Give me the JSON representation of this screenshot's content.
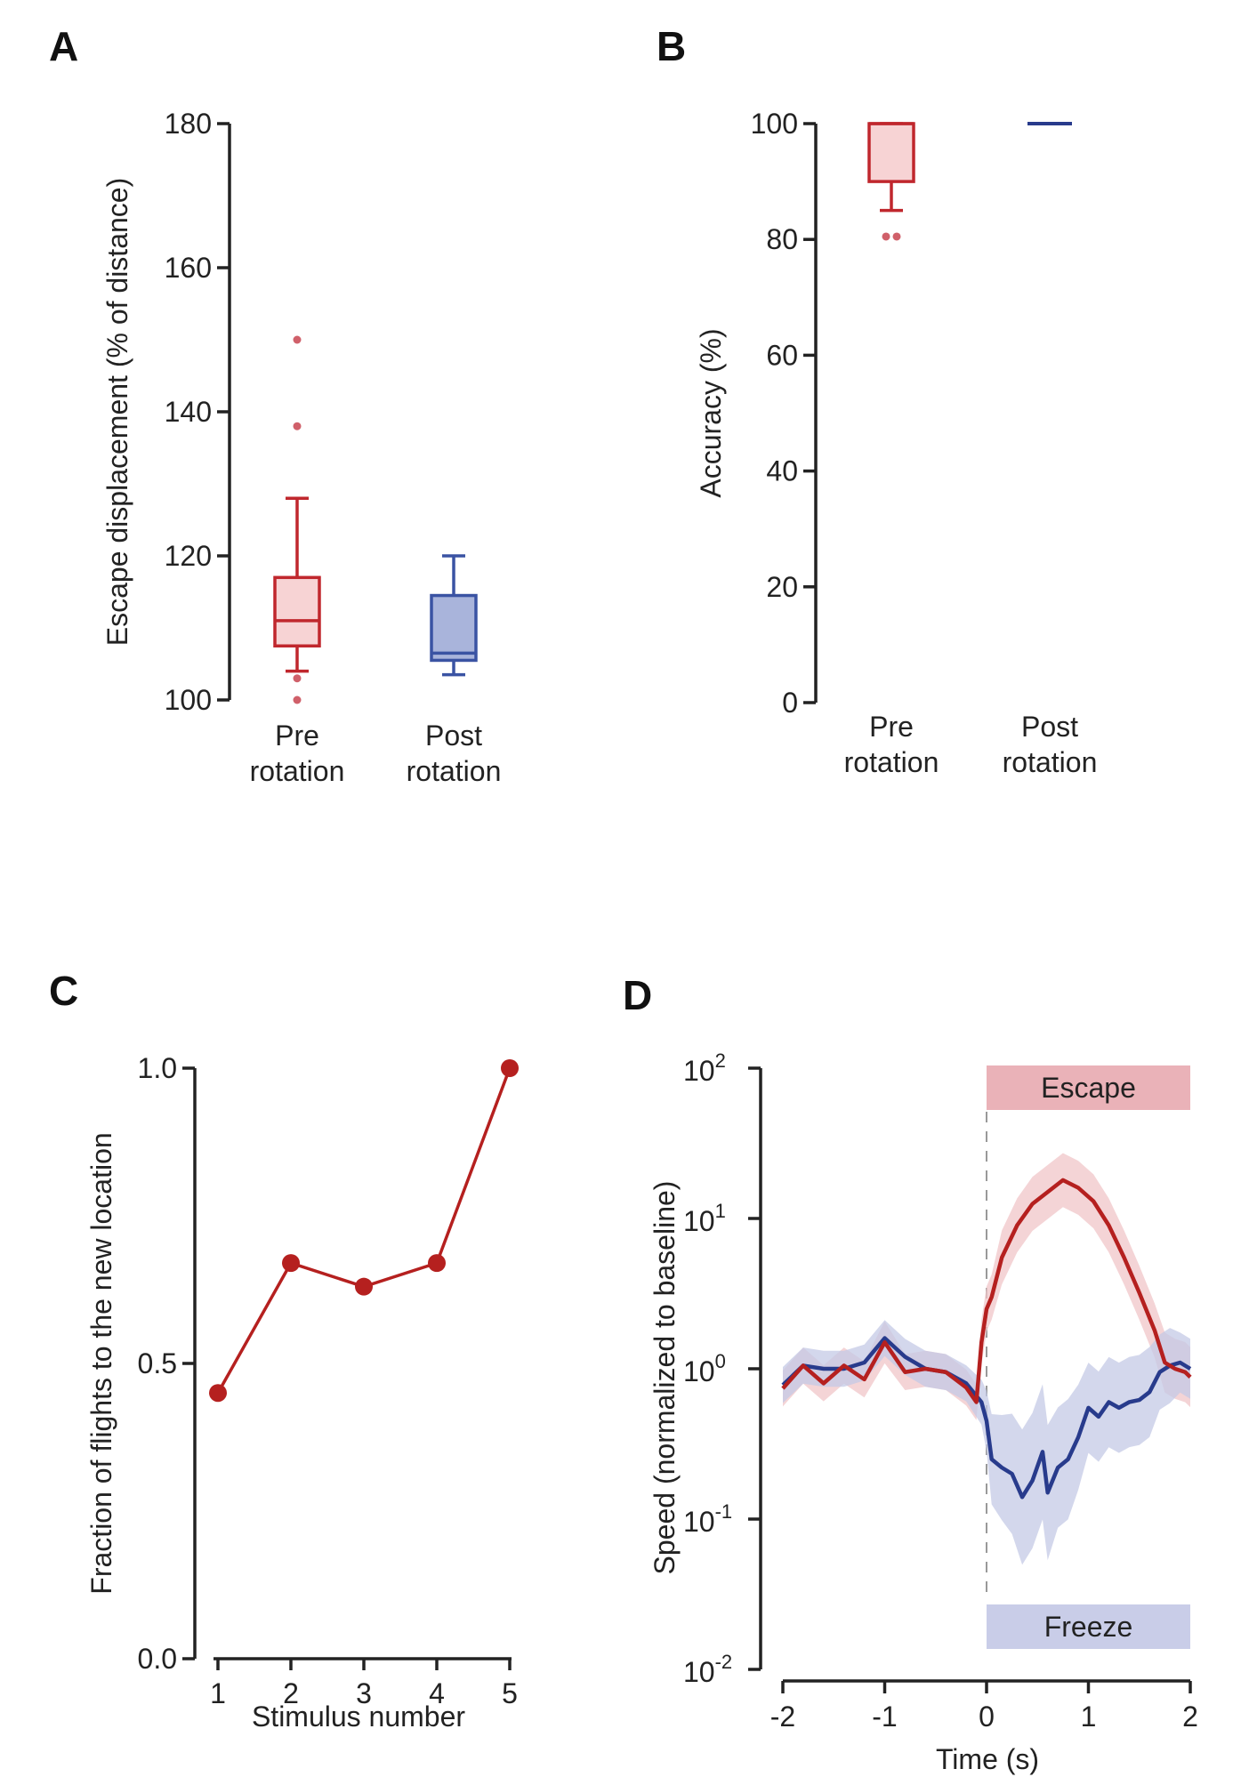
{
  "chart_data": [
    {
      "panel": "A",
      "type": "box",
      "ylabel": "Escape displacement (% of distance)",
      "ylim": [
        100,
        180
      ],
      "yticks": [
        "100",
        "120",
        "140",
        "160",
        "180"
      ],
      "categories": [
        {
          "line1": "Pre",
          "line2": "rotation",
          "color": "#c0272d",
          "fill": "#f7d3d4",
          "whisker_low": 104,
          "q1": 107.5,
          "median": 111,
          "q3": 117,
          "whisker_high": 128,
          "outliers": [
            150,
            138,
            103,
            100
          ]
        },
        {
          "line1": "Post",
          "line2": "rotation",
          "color": "#3a53a3",
          "fill": "#a9b4db",
          "whisker_low": 103.5,
          "q1": 105.5,
          "median": 106.5,
          "q3": 114.5,
          "whisker_high": 120,
          "outliers": []
        }
      ]
    },
    {
      "panel": "B",
      "type": "box",
      "ylabel": "Accuracy (%)",
      "ylim": [
        0,
        100
      ],
      "yticks": [
        "0",
        "20",
        "40",
        "60",
        "80",
        "100"
      ],
      "categories": [
        {
          "line1": "Pre",
          "line2": "rotation",
          "color": "#c0272d",
          "fill": "#f7d3d4",
          "whisker_low": 85,
          "q1": 90,
          "median": 100,
          "q3": 100,
          "whisker_high": 100,
          "outliers": [
            80.5,
            80.5
          ]
        },
        {
          "line1": "Post",
          "line2": "rotation",
          "color": "#283b8c",
          "fill": "#a9b4db",
          "whisker_low": 100,
          "q1": 100,
          "median": 100,
          "q3": 100,
          "whisker_high": 100,
          "outliers": []
        }
      ]
    },
    {
      "panel": "C",
      "type": "line",
      "xlabel": "Stimulus number",
      "ylabel": "Fraction of flights to the new location",
      "x": [
        1,
        2,
        3,
        4,
        5
      ],
      "y": [
        0.45,
        0.67,
        0.63,
        0.67,
        1.0
      ],
      "xticks": [
        "1",
        "2",
        "3",
        "4",
        "5"
      ],
      "yticks": [
        "0.0",
        "0.5",
        "1.0"
      ],
      "ylim": [
        0,
        1
      ],
      "color": "#b5201f"
    },
    {
      "panel": "D",
      "type": "line",
      "xlabel": "Time (s)",
      "ylabel": "Speed (normalized to baseline)",
      "yscale": "log",
      "xlim": [
        -2,
        2
      ],
      "ylim_exponent": [
        -2,
        2
      ],
      "xticks": [
        "-2",
        "-1",
        "0",
        "1",
        "2"
      ],
      "ytick_base": "10",
      "ytick_exponents": [
        "-2",
        "-1",
        "0",
        "1",
        "2"
      ],
      "escape_label": "Escape",
      "freeze_label": "Freeze",
      "series": [
        {
          "name": "Escape",
          "color": "#b5201f",
          "band": "#f0c5c8",
          "points": [
            [
              -2.0,
              0.74
            ],
            [
              -1.8,
              1.05
            ],
            [
              -1.6,
              0.8
            ],
            [
              -1.4,
              1.05
            ],
            [
              -1.2,
              0.85
            ],
            [
              -1.0,
              1.5
            ],
            [
              -0.8,
              0.95
            ],
            [
              -0.6,
              1.0
            ],
            [
              -0.4,
              0.95
            ],
            [
              -0.2,
              0.75
            ],
            [
              -0.1,
              0.6
            ],
            [
              -0.05,
              1.5
            ],
            [
              0.0,
              2.5
            ],
            [
              0.05,
              3.0
            ],
            [
              0.15,
              5.5
            ],
            [
              0.3,
              9.0
            ],
            [
              0.45,
              12.5
            ],
            [
              0.6,
              15.0
            ],
            [
              0.75,
              18.0
            ],
            [
              0.9,
              16.0
            ],
            [
              1.05,
              13.0
            ],
            [
              1.2,
              9.0
            ],
            [
              1.35,
              5.5
            ],
            [
              1.5,
              3.2
            ],
            [
              1.65,
              1.8
            ],
            [
              1.75,
              1.1
            ],
            [
              1.85,
              1.0
            ],
            [
              1.95,
              0.95
            ],
            [
              2.0,
              0.88
            ]
          ],
          "band_half_width": [
            0.12,
            0.12,
            0.12,
            0.12,
            0.12,
            0.14,
            0.12,
            0.12,
            0.12,
            0.12,
            0.12,
            0.15,
            0.15,
            0.15,
            0.18,
            0.18,
            0.18,
            0.18,
            0.18,
            0.18,
            0.18,
            0.18,
            0.18,
            0.18,
            0.18,
            0.2,
            0.2,
            0.2,
            0.2
          ]
        },
        {
          "name": "Freeze",
          "color": "#283b8c",
          "band": "#c4cae6",
          "points": [
            [
              -2.0,
              0.78
            ],
            [
              -1.8,
              1.05
            ],
            [
              -1.6,
              1.0
            ],
            [
              -1.4,
              1.0
            ],
            [
              -1.2,
              1.1
            ],
            [
              -1.0,
              1.6
            ],
            [
              -0.8,
              1.2
            ],
            [
              -0.6,
              1.0
            ],
            [
              -0.4,
              0.95
            ],
            [
              -0.2,
              0.8
            ],
            [
              -0.05,
              0.6
            ],
            [
              0.0,
              0.45
            ],
            [
              0.05,
              0.25
            ],
            [
              0.15,
              0.22
            ],
            [
              0.25,
              0.2
            ],
            [
              0.35,
              0.14
            ],
            [
              0.45,
              0.18
            ],
            [
              0.55,
              0.28
            ],
            [
              0.6,
              0.15
            ],
            [
              0.7,
              0.22
            ],
            [
              0.8,
              0.25
            ],
            [
              0.9,
              0.35
            ],
            [
              1.0,
              0.55
            ],
            [
              1.1,
              0.48
            ],
            [
              1.2,
              0.6
            ],
            [
              1.3,
              0.55
            ],
            [
              1.4,
              0.6
            ],
            [
              1.5,
              0.62
            ],
            [
              1.6,
              0.7
            ],
            [
              1.7,
              0.95
            ],
            [
              1.8,
              1.05
            ],
            [
              1.9,
              1.1
            ],
            [
              2.0,
              1.0
            ]
          ],
          "band_half_width": [
            0.12,
            0.12,
            0.12,
            0.12,
            0.12,
            0.12,
            0.12,
            0.12,
            0.12,
            0.12,
            0.15,
            0.2,
            0.3,
            0.35,
            0.4,
            0.45,
            0.45,
            0.45,
            0.45,
            0.4,
            0.4,
            0.35,
            0.3,
            0.3,
            0.3,
            0.3,
            0.3,
            0.3,
            0.3,
            0.25,
            0.25,
            0.2,
            0.2
          ]
        }
      ]
    }
  ],
  "panels": {
    "a": "A",
    "b": "B",
    "c": "C",
    "d": "D"
  }
}
